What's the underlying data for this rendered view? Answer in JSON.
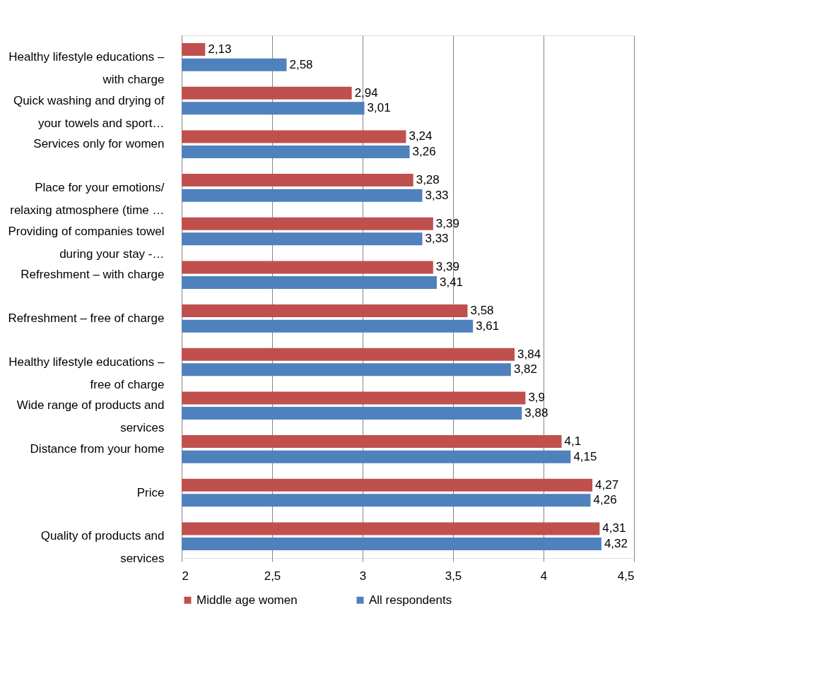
{
  "chart_data": {
    "type": "bar",
    "orientation": "horizontal",
    "categories": [
      "Healthy lifestyle educations – with charge",
      "Quick washing and drying of your towels and sport…",
      "Services only for women",
      "Place for your emotions/ relaxing atmosphere (time …",
      "Providing of companies towel during your stay  -…",
      "Refreshment – with charge",
      "Refreshment – free of charge",
      "Healthy lifestyle educations – free of charge",
      "Wide range of products and services",
      "Distance from your home",
      "Price",
      "Quality of products and services"
    ],
    "series": [
      {
        "name": "Middle age women",
        "color": "#c0504d",
        "values": [
          2.13,
          2.94,
          3.24,
          3.28,
          3.39,
          3.39,
          3.58,
          3.84,
          3.9,
          4.1,
          4.27,
          4.31
        ],
        "value_labels": [
          "2,13",
          "2,94",
          "3,24",
          "3,28",
          "3,39",
          "3,39",
          "3,58",
          "3,84",
          "3,9",
          "4,1",
          "4,27",
          "4,31"
        ]
      },
      {
        "name": "All respondents",
        "color": "#4f81bd",
        "values": [
          2.58,
          3.01,
          3.26,
          3.33,
          3.33,
          3.41,
          3.61,
          3.82,
          3.88,
          4.15,
          4.26,
          4.32
        ],
        "value_labels": [
          "2,58",
          "3,01",
          "3,26",
          "3,33",
          "3,33",
          "3,41",
          "3,61",
          "3,82",
          "3,88",
          "4,15",
          "4,26",
          "4,32"
        ]
      }
    ],
    "xlim": [
      2,
      4.5
    ],
    "xticks": [
      2,
      {
        "value": 2.5,
        "label": "2,5"
      },
      3,
      {
        "value": 3.5,
        "label": "3,5"
      },
      4,
      {
        "value": 4.5,
        "label": "4,5"
      }
    ],
    "grid": "x",
    "legend": "bottom"
  }
}
